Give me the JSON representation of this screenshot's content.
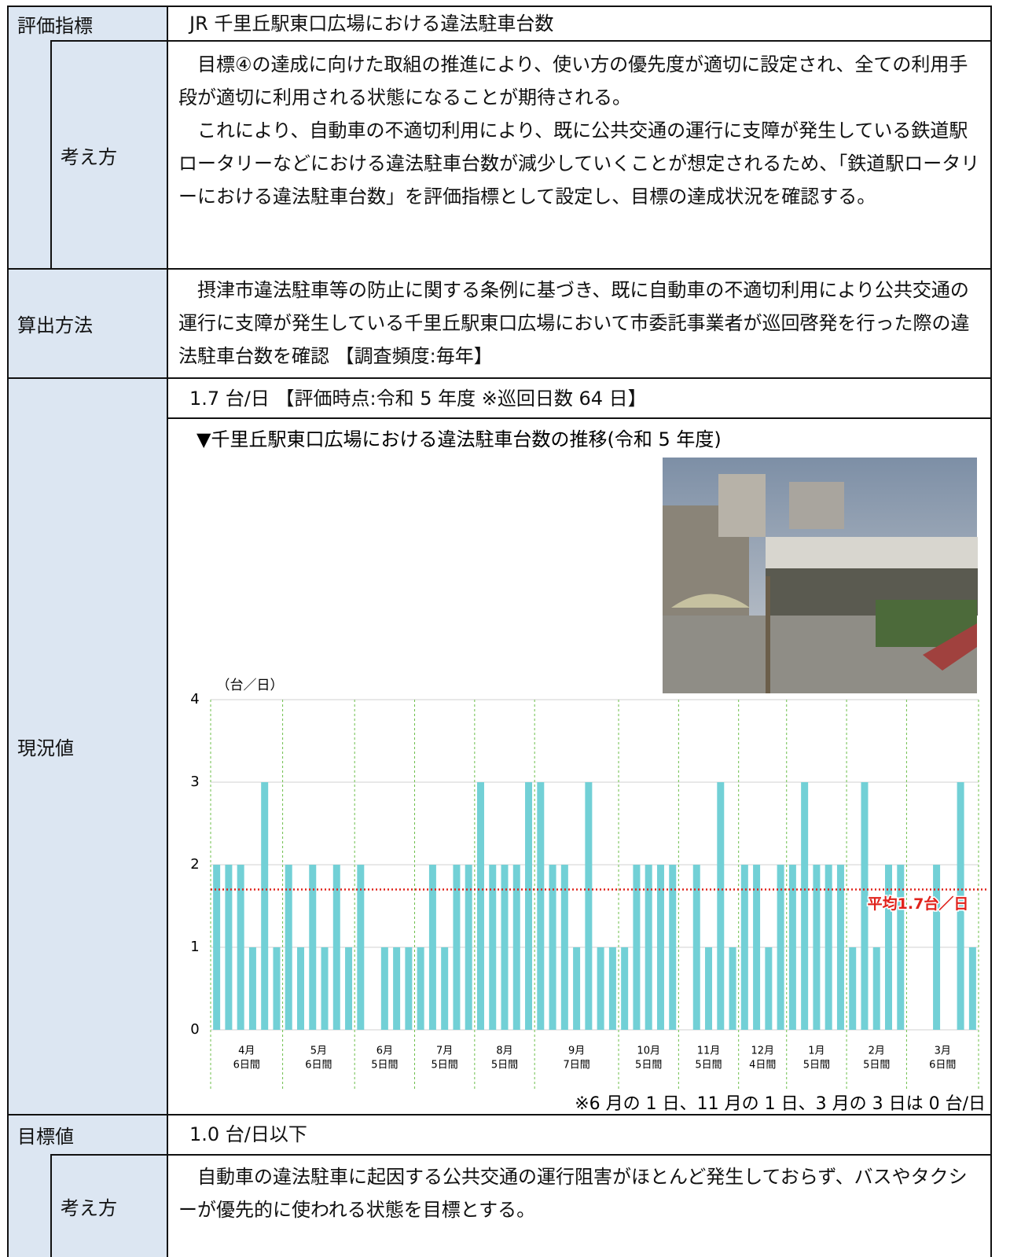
{
  "table": {
    "rows": [
      {
        "label": "評価指標",
        "content": "JR 千里丘駅東口広場における違法駐車台数"
      },
      {
        "label": "考え方",
        "paragraphs": [
          "目標④の達成に向けた取組の推進により、使い方の優先度が適切に設定され、全ての利用手段が適切に利用される状態になることが期待される。",
          "これにより、自動車の不適切利用により、既に公共交通の運行に支障が発生している鉄道駅ロータリーなどにおける違法駐車台数が減少していくことが想定されるため、「鉄道駅ロータリーにおける違法駐車台数」を評価指標として設定し、目標の達成状況を確認する。"
        ]
      },
      {
        "label": "算出方法",
        "paragraphs": [
          "摂津市違法駐車等の防止に関する条例に基づき、既に自動車の不適切利用により公共交通の運行に支障が発生している千里丘駅東口広場において市委託事業者が巡回啓発を行った際の違法駐車台数を確認 【調査頻度:毎年】"
        ]
      },
      {
        "label": "現況値",
        "content": "1.7 台/日 【評価時点:令和 5 年度 ※巡回日数 64 日】"
      },
      {
        "label": "目標値",
        "content": "1.0 台/日以下"
      },
      {
        "label": "考え方",
        "paragraphs": [
          "自動車の違法駐車に起因する公共交通の運行阻害がほとんど発生しておらず、バスやタクシーが優先的に使われる状態を目標とする。"
        ]
      }
    ]
  },
  "chart_data": {
    "type": "bar",
    "title": "▼千里丘駅東口広場における違法駐車台数の推移(令和 5 年度)",
    "y_label": "（台／日）",
    "color": "#72d0d6",
    "ylim": [
      0,
      4
    ],
    "yticks": [
      0,
      1,
      2,
      3,
      4
    ],
    "grid": true,
    "months": [
      {
        "name": "4月",
        "span": "6日間",
        "values": [
          2,
          2,
          2,
          1,
          3,
          1
        ]
      },
      {
        "name": "5月",
        "span": "6日間",
        "values": [
          2,
          1,
          2,
          1,
          2,
          1
        ]
      },
      {
        "name": "6月",
        "span": "5日間",
        "values": [
          2,
          0,
          1,
          1,
          1
        ]
      },
      {
        "name": "7月",
        "span": "5日間",
        "values": [
          1,
          2,
          1,
          2,
          2
        ]
      },
      {
        "name": "8月",
        "span": "5日間",
        "values": [
          3,
          2,
          2,
          2,
          3
        ]
      },
      {
        "name": "9月",
        "span": "7日間",
        "values": [
          3,
          2,
          2,
          1,
          3,
          1,
          1
        ]
      },
      {
        "name": "10月",
        "span": "5日間",
        "values": [
          1,
          2,
          2,
          2,
          2
        ]
      },
      {
        "name": "11月",
        "span": "5日間",
        "values": [
          0,
          2,
          1,
          3,
          1
        ]
      },
      {
        "name": "12月",
        "span": "4日間",
        "values": [
          2,
          2,
          1,
          2
        ]
      },
      {
        "name": "1月",
        "span": "5日間",
        "values": [
          2,
          3,
          2,
          2,
          2
        ]
      },
      {
        "name": "2月",
        "span": "5日間",
        "values": [
          1,
          3,
          1,
          2,
          2
        ]
      },
      {
        "name": "3月",
        "span": "6日間",
        "values": [
          0,
          0,
          2,
          0,
          3,
          1
        ]
      }
    ],
    "average": {
      "value": 1.7,
      "label": "平均1.7台／日",
      "color": "#e0231c"
    },
    "note": "※6 月の 1 日、11 月の 1 日、3 月の 3 日は 0 台/日"
  }
}
